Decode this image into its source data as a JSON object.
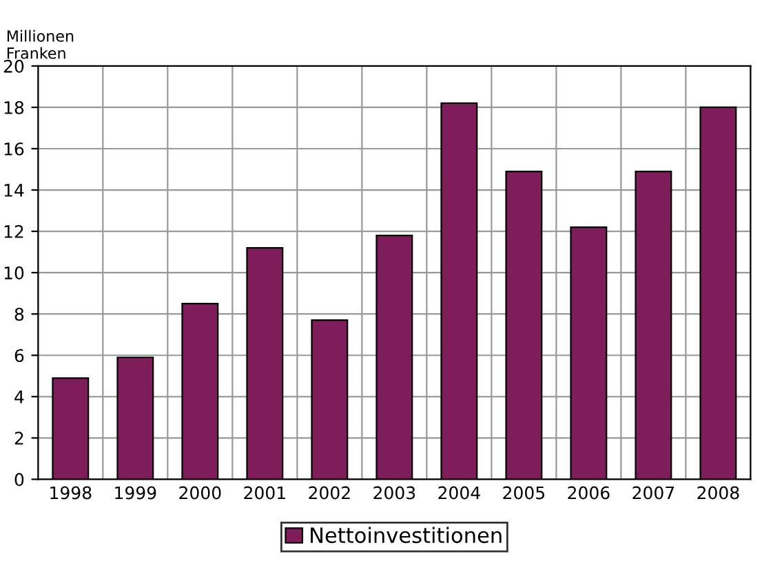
{
  "chart_data": {
    "type": "bar",
    "ylabel": "Millionen\nFranken",
    "categories": [
      "1998",
      "1999",
      "2000",
      "2001",
      "2002",
      "2003",
      "2004",
      "2005",
      "2006",
      "2007",
      "2008"
    ],
    "series": [
      {
        "name": "Nettoinvestitionen",
        "color": "#7f1d5a",
        "values": [
          4.9,
          5.9,
          8.5,
          11.2,
          7.7,
          11.8,
          18.2,
          14.9,
          12.2,
          14.9,
          18.0
        ]
      }
    ],
    "ylim": [
      0,
      20
    ],
    "yticks": [
      0,
      2,
      4,
      6,
      8,
      10,
      12,
      14,
      16,
      18,
      20
    ],
    "grid": true,
    "legend": "bottom"
  }
}
